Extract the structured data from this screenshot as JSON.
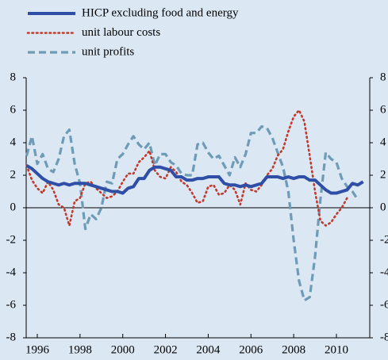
{
  "chart_data": {
    "type": "line",
    "x": [
      1995.5,
      1995.75,
      1996,
      1996.25,
      1996.5,
      1996.75,
      1997,
      1997.25,
      1997.5,
      1997.75,
      1998,
      1998.25,
      1998.5,
      1998.75,
      1999,
      1999.25,
      1999.5,
      1999.75,
      2000,
      2000.25,
      2000.5,
      2000.75,
      2001,
      2001.25,
      2001.5,
      2001.75,
      2002,
      2002.25,
      2002.5,
      2002.75,
      2003,
      2003.25,
      2003.5,
      2003.75,
      2004,
      2004.25,
      2004.5,
      2004.75,
      2005,
      2005.25,
      2005.5,
      2005.75,
      2006,
      2006.25,
      2006.5,
      2006.75,
      2007,
      2007.25,
      2007.5,
      2007.75,
      2008,
      2008.25,
      2008.5,
      2008.75,
      2009,
      2009.25,
      2009.5,
      2009.75,
      2010,
      2010.25,
      2010.5,
      2010.75,
      2011,
      2011.25
    ],
    "series": [
      {
        "name": "HICP excluding food and energy",
        "color": "#2f4ea6",
        "style": "solid",
        "values": [
          2.6,
          2.4,
          2.1,
          1.8,
          1.6,
          1.5,
          1.4,
          1.5,
          1.4,
          1.5,
          1.5,
          1.5,
          1.4,
          1.3,
          1.2,
          1.1,
          1.0,
          1.0,
          0.9,
          1.2,
          1.3,
          1.8,
          1.8,
          2.3,
          2.5,
          2.5,
          2.4,
          2.3,
          1.9,
          1.9,
          1.7,
          1.7,
          1.8,
          1.8,
          1.9,
          1.9,
          1.9,
          1.5,
          1.4,
          1.4,
          1.3,
          1.4,
          1.3,
          1.4,
          1.5,
          1.9,
          1.9,
          1.9,
          1.8,
          1.9,
          1.8,
          1.9,
          1.9,
          1.7,
          1.7,
          1.4,
          1.1,
          0.9,
          0.9,
          1.0,
          1.1,
          1.5,
          1.4,
          1.6
        ]
      },
      {
        "name": "unit labour costs",
        "color": "#c23a2c",
        "style": "dotted",
        "values": [
          2.6,
          1.7,
          1.2,
          0.9,
          1.6,
          1.1,
          0.2,
          0.0,
          -1.1,
          0.4,
          0.6,
          1.5,
          1.6,
          1.2,
          0.9,
          0.6,
          0.7,
          1.0,
          1.6,
          2.1,
          2.1,
          2.8,
          3.1,
          3.5,
          2.3,
          1.9,
          1.8,
          2.5,
          2.2,
          1.6,
          1.4,
          0.9,
          0.3,
          0.4,
          1.3,
          1.4,
          0.8,
          0.9,
          1.4,
          1.1,
          0.2,
          1.5,
          1.1,
          1.0,
          1.4,
          2.0,
          2.4,
          3.2,
          3.6,
          4.7,
          5.6,
          6.0,
          5.3,
          3.2,
          1.0,
          -0.8,
          -1.1,
          -0.9,
          -0.4,
          0.0,
          0.6,
          null,
          null,
          null
        ]
      },
      {
        "name": "unit profits",
        "color": "#6e9cb6",
        "style": "dashed",
        "values": [
          3.2,
          4.4,
          2.7,
          3.3,
          2.4,
          2.2,
          3.0,
          4.4,
          4.8,
          2.7,
          1.5,
          -1.3,
          -0.4,
          -0.7,
          0.0,
          1.6,
          1.5,
          3.0,
          3.3,
          3.9,
          4.4,
          3.9,
          3.6,
          4.0,
          2.6,
          3.3,
          3.3,
          2.8,
          2.6,
          2.1,
          2.0,
          2.0,
          3.9,
          4.0,
          3.4,
          3.0,
          3.2,
          2.6,
          2.0,
          3.1,
          2.5,
          3.3,
          4.6,
          4.6,
          5.0,
          4.9,
          4.3,
          3.4,
          2.5,
          1.0,
          -2.0,
          -4.5,
          -5.7,
          -5.5,
          -3.0,
          0.5,
          3.4,
          3.0,
          2.8,
          1.8,
          1.3,
          1.0,
          0.5,
          null
        ]
      }
    ],
    "xlim": [
      1995.48,
      2011.56
    ],
    "xticks": [
      1996,
      1998,
      2000,
      2002,
      2004,
      2006,
      2008,
      2010
    ],
    "ylim": [
      -8,
      8
    ],
    "yticks": [
      -8,
      -6,
      -4,
      -2,
      0,
      2,
      4,
      6,
      8
    ],
    "legend": "top-left"
  }
}
